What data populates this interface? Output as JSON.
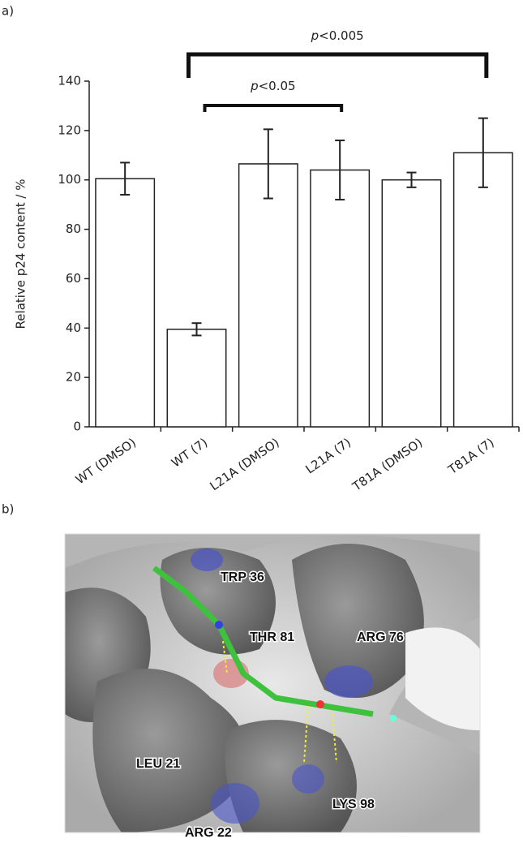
{
  "chart_data": {
    "type": "bar",
    "y_label": "Relative p24 content / %",
    "categories": [
      "WT (DMSO)",
      "WT (7)",
      "L21A (DMSO)",
      "L21A (7)",
      "T81A (DMSO)",
      "T81A (7)"
    ],
    "values": [
      100.5,
      39.5,
      106.5,
      104,
      100,
      111
    ],
    "errors": [
      6.5,
      2.5,
      14,
      12,
      3,
      14
    ],
    "color": "#ffffff",
    "ylim": [
      0,
      140
    ],
    "yticks": [
      0,
      20,
      40,
      60,
      80,
      100,
      120,
      140
    ],
    "annotations": [
      "p<0.05",
      "p<0.005"
    ]
  },
  "panel_labels": [
    "a)",
    "b)"
  ],
  "structure_labels": [
    "TRP 36",
    "THR 81",
    "ARG 76",
    "LEU 21",
    "ARG 22",
    "LYS 98"
  ]
}
